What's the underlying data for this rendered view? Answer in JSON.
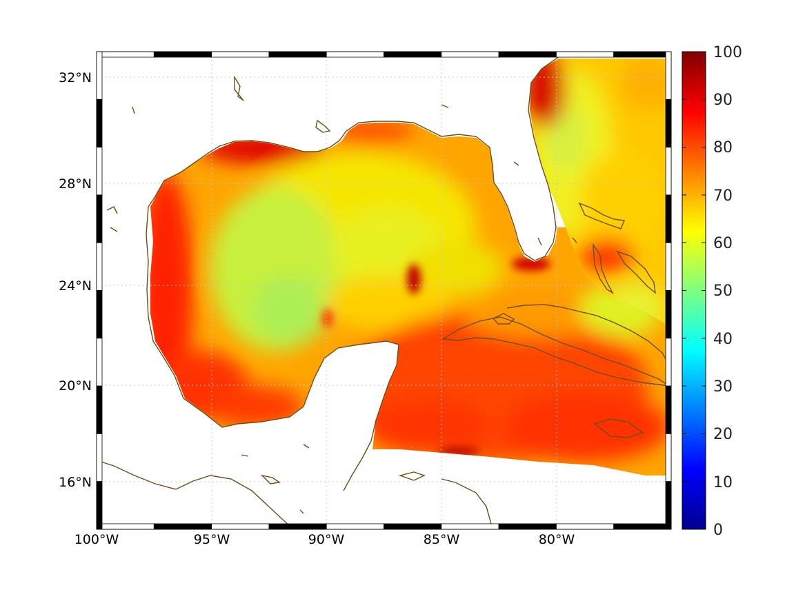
{
  "map": {
    "projection": "mercator",
    "lon_range": [
      -100,
      -75.2
    ],
    "lat_range": [
      14.2,
      33
    ],
    "lon_ticks": [
      "100°W",
      "95°W",
      "90°W",
      "85°W",
      "80°W"
    ],
    "lat_ticks": [
      "32°N",
      "28°N",
      "24°N",
      "20°N",
      "16°N"
    ],
    "grid": true,
    "frame": "black-and-white checker border",
    "coastline_color": "#6b4e16",
    "land_color": "#ffffff",
    "colormap": "jet"
  },
  "colorbar": {
    "min": 0,
    "max": 100,
    "tick_labels": [
      "100",
      "90",
      "80",
      "70",
      "60",
      "50",
      "40",
      "30",
      "20",
      "10",
      "0"
    ],
    "colors": [
      "#00008f",
      "#0000ff",
      "#00ffff",
      "#ffff00",
      "#ff0000",
      "#800000"
    ],
    "placement": "right"
  },
  "field": {
    "regions": [
      "Gulf of Mexico interior ~60-70",
      "Western Gulf coast ~85-90",
      "Louisiana shelf ~90",
      "Caribbean Sea ~80-85",
      "Atlantic off Florida ~65-70",
      "Florida Keys / Cuba channel ~90"
    ]
  }
}
